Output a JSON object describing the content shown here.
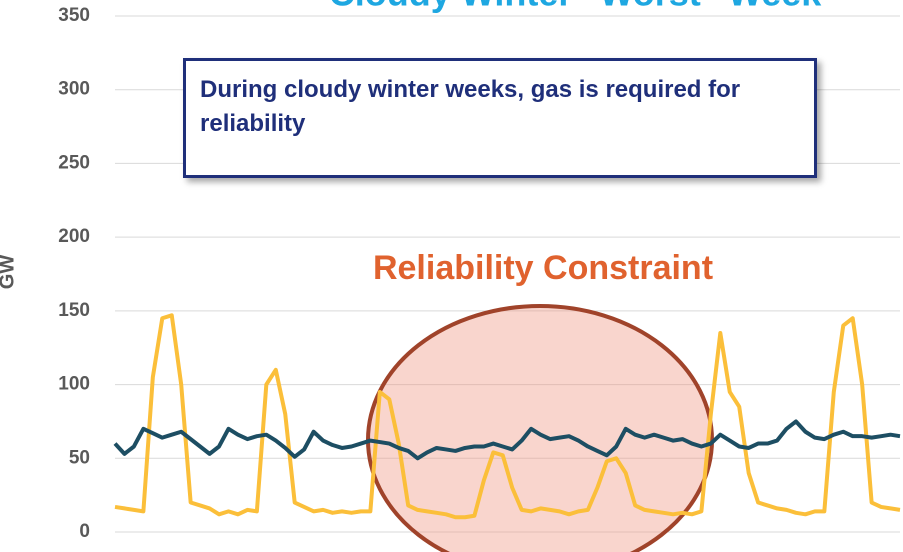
{
  "chart_data": {
    "type": "line",
    "title": "Cloudy Winter \"Worst\" Week",
    "y_label": "GW",
    "annotations": [
      "During cloudy winter weeks, gas is required for reliability",
      "Reliability Constraint"
    ],
    "ylim": [
      0,
      350
    ],
    "yticks": [
      0,
      50,
      100,
      150,
      200,
      250,
      300,
      350
    ],
    "grid": true,
    "series": [
      {
        "color": "#fbbf3a",
        "values": [
          17,
          16,
          15,
          14,
          105,
          145,
          147,
          100,
          20,
          18,
          16,
          12,
          14,
          12,
          15,
          14,
          100,
          110,
          80,
          20,
          17,
          14,
          15,
          13,
          14,
          13,
          14,
          14,
          95,
          90,
          60,
          18,
          15,
          14,
          13,
          12,
          10,
          10,
          11,
          35,
          54,
          52,
          30,
          15,
          14,
          16,
          15,
          14,
          12,
          14,
          15,
          30,
          48,
          50,
          40,
          18,
          15,
          14,
          13,
          12,
          13,
          12,
          14,
          80,
          135,
          95,
          85,
          40,
          20,
          18,
          16,
          15,
          13,
          12,
          14,
          14,
          95,
          140,
          145,
          100,
          20,
          17,
          16,
          15
        ]
      },
      {
        "color": "#1d4e63",
        "values": [
          60,
          53,
          58,
          70,
          67,
          64,
          66,
          68,
          63,
          58,
          53,
          58,
          70,
          66,
          63,
          65,
          66,
          62,
          57,
          51,
          56,
          68,
          62,
          59,
          57,
          58,
          60,
          62,
          61,
          60,
          57,
          55,
          50,
          54,
          57,
          56,
          55,
          57,
          58,
          58,
          60,
          58,
          56,
          62,
          70,
          66,
          63,
          64,
          65,
          62,
          58,
          55,
          52,
          58,
          70,
          66,
          64,
          66,
          64,
          62,
          63,
          60,
          58,
          60,
          66,
          62,
          58,
          57,
          60,
          60,
          62,
          70,
          75,
          68,
          64,
          63,
          66,
          68,
          65,
          65,
          64,
          65,
          66,
          65
        ]
      }
    ]
  }
}
